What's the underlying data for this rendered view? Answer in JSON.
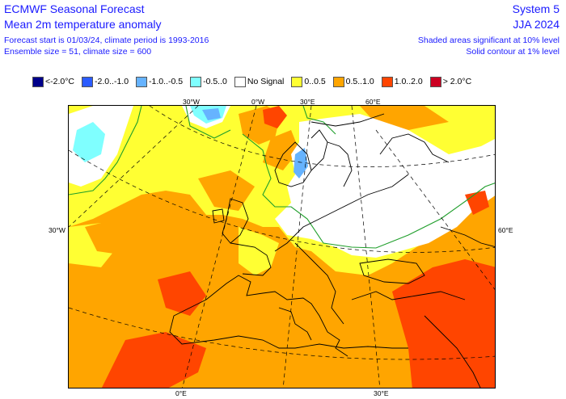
{
  "header": {
    "title_left": "ECMWF Seasonal Forecast",
    "subtitle_left": "Mean 2m temperature anomaly",
    "info_line1": "Forecast start is 01/03/24, climate period is 1993-2016",
    "info_line2": "Ensemble size = 51, climate size = 600",
    "title_right": "System 5",
    "season": "JJA 2024",
    "note_line1": "Shaded areas significant at 10% level",
    "note_line2": "Solid contour at 1% level"
  },
  "legend": [
    {
      "label": "<-2.0°C",
      "color": "#00008b"
    },
    {
      "label": "-2.0..-1.0",
      "color": "#2b5cff"
    },
    {
      "label": "-1.0..-0.5",
      "color": "#66b3ff"
    },
    {
      "label": "-0.5..0",
      "color": "#7fffff"
    },
    {
      "label": "No Signal",
      "color": "#ffffff"
    },
    {
      "label": "0..0.5",
      "color": "#ffff33"
    },
    {
      "label": "0.5..1.0",
      "color": "#ffa500"
    },
    {
      "label": "1.0..2.0",
      "color": "#ff4500"
    },
    {
      "label": "> 2.0°C",
      "color": "#cc0022"
    }
  ],
  "axis_labels": {
    "top": [
      "30°W",
      "0°W",
      "30°E",
      "60°E"
    ],
    "left": "30°W",
    "right": "60°E",
    "bottom": [
      "0°E",
      "30°E"
    ]
  }
}
